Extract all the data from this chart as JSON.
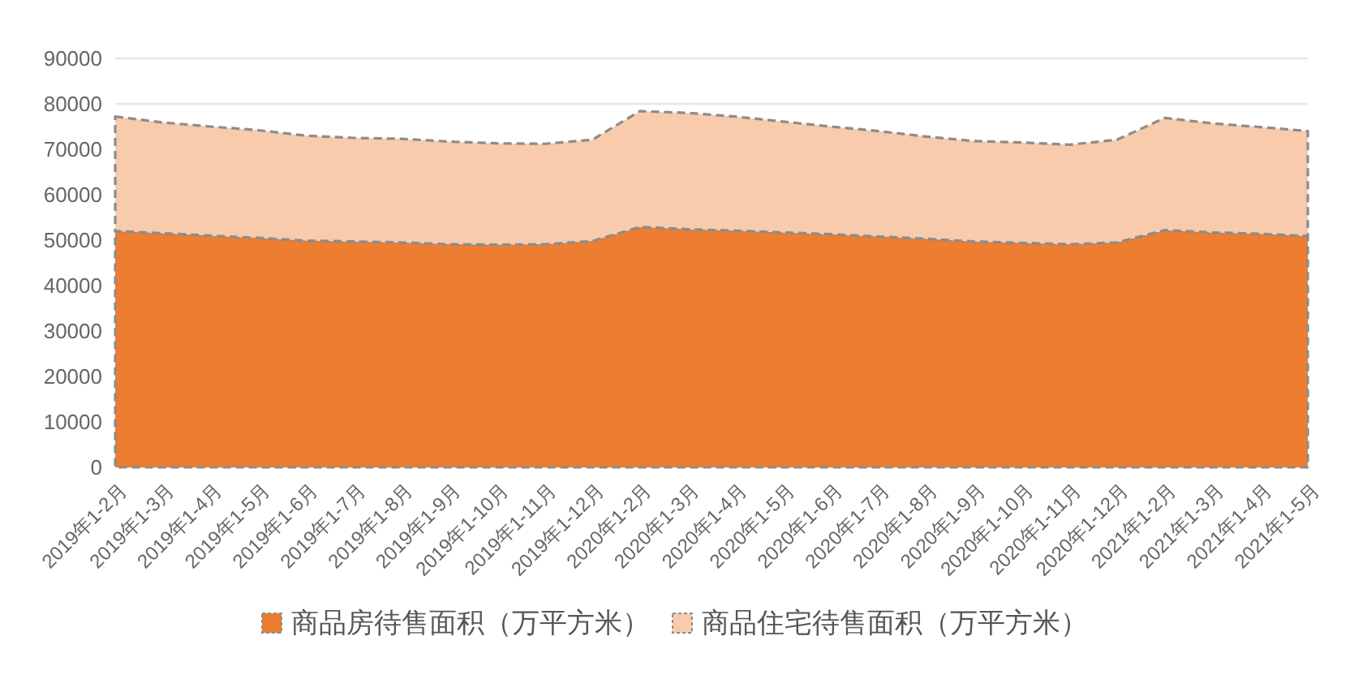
{
  "chart_data": {
    "type": "area",
    "stacked": true,
    "categories": [
      "2019年1-2月",
      "2019年1-3月",
      "2019年1-4月",
      "2019年1-5月",
      "2019年1-6月",
      "2019年1-7月",
      "2019年1-8月",
      "2019年1-9月",
      "2019年1-10月",
      "2019年1-11月",
      "2019年1-12月",
      "2020年1-2月",
      "2020年1-3月",
      "2020年1-4月",
      "2020年1-5月",
      "2020年1-6月",
      "2020年1-7月",
      "2020年1-8月",
      "2020年1-9月",
      "2020年1-10月",
      "2020年1-11月",
      "2020年1-12月",
      "2021年1-2月",
      "2021年1-3月",
      "2021年1-4月",
      "2021年1-5月"
    ],
    "series": [
      {
        "name": "商品房待售面积（万平方米）",
        "color": "#ed7d31",
        "values": [
          52000,
          51500,
          51000,
          50500,
          49900,
          49700,
          49500,
          49100,
          49000,
          49100,
          49800,
          52900,
          52400,
          52100,
          51700,
          51300,
          50800,
          50300,
          49700,
          49400,
          49100,
          49500,
          52200,
          51700,
          51400,
          50900
        ]
      },
      {
        "name": "商品住宅待售面积（万平方米）",
        "color": "#f8cbad",
        "values": [
          25200,
          24400,
          24000,
          23700,
          23100,
          22800,
          22800,
          22600,
          22300,
          22100,
          22300,
          25500,
          25600,
          25100,
          24400,
          23700,
          23200,
          22500,
          22100,
          22100,
          21900,
          22600,
          24700,
          24000,
          23500,
          23100
        ]
      }
    ],
    "ylim": [
      0,
      90000
    ],
    "yticks": [
      0,
      10000,
      20000,
      30000,
      40000,
      50000,
      60000,
      70000,
      80000,
      90000
    ],
    "grid": "y",
    "legend": "bottom",
    "line_style": "dashed"
  }
}
